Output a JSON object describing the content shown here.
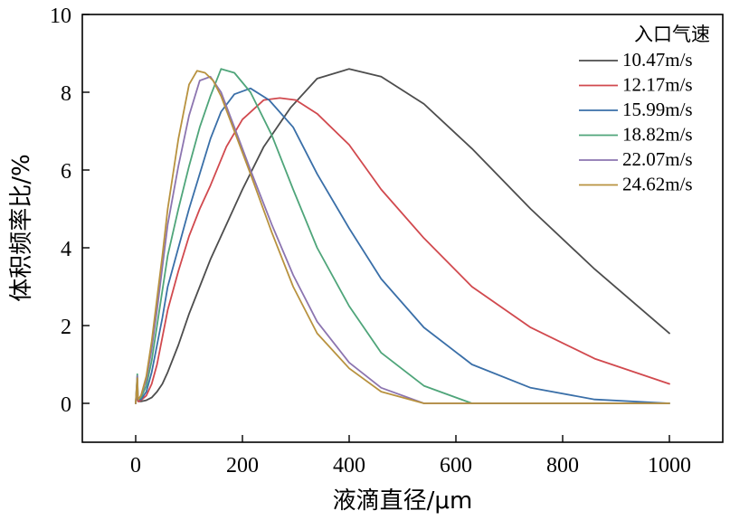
{
  "chart_data": {
    "type": "line",
    "title": "",
    "xlabel": "液滴直径/μm",
    "ylabel": "体积频率比/%",
    "xlim": [
      -100,
      1100
    ],
    "ylim": [
      -1,
      10
    ],
    "xticks": [
      0,
      200,
      400,
      600,
      800,
      1000
    ],
    "yticks": [
      0,
      2,
      4,
      6,
      8,
      10
    ],
    "grid": false,
    "legend": {
      "title": "入口气速",
      "position": "top-right"
    },
    "series": [
      {
        "name": "10.47m/s",
        "color": "#4d4d4d",
        "x": [
          0,
          3,
          4,
          5,
          10,
          20,
          30,
          40,
          50,
          60,
          80,
          100,
          120,
          140,
          170,
          200,
          240,
          290,
          340,
          400,
          460,
          540,
          630,
          740,
          860,
          1000
        ],
        "y": [
          0,
          0.35,
          0.1,
          0.05,
          0.05,
          0.08,
          0.15,
          0.3,
          0.5,
          0.8,
          1.5,
          2.3,
          3.0,
          3.7,
          4.6,
          5.5,
          6.6,
          7.6,
          8.35,
          8.6,
          8.4,
          7.7,
          6.55,
          5.0,
          3.45,
          1.8
        ]
      },
      {
        "name": "12.17m/s",
        "color": "#d1494e",
        "x": [
          0,
          3,
          4,
          5,
          10,
          20,
          30,
          40,
          50,
          60,
          80,
          100,
          120,
          140,
          170,
          200,
          240,
          270,
          300,
          340,
          400,
          460,
          540,
          630,
          740,
          860,
          1000
        ],
        "y": [
          0,
          0.45,
          0.1,
          0.05,
          0.08,
          0.2,
          0.5,
          1.0,
          1.7,
          2.4,
          3.4,
          4.3,
          5.0,
          5.6,
          6.6,
          7.3,
          7.8,
          7.85,
          7.8,
          7.45,
          6.65,
          5.5,
          4.25,
          3.0,
          1.95,
          1.15,
          0.5
        ]
      },
      {
        "name": "15.99m/s",
        "color": "#3a6fa8",
        "x": [
          0,
          3,
          4,
          5,
          10,
          20,
          30,
          40,
          50,
          60,
          80,
          100,
          120,
          140,
          160,
          185,
          215,
          250,
          295,
          340,
          400,
          460,
          540,
          630,
          740,
          860,
          1000
        ],
        "y": [
          0,
          0.55,
          0.15,
          0.1,
          0.1,
          0.3,
          0.8,
          1.5,
          2.2,
          3.0,
          4.0,
          5.0,
          5.9,
          6.8,
          7.5,
          7.95,
          8.1,
          7.8,
          7.1,
          5.9,
          4.5,
          3.2,
          1.95,
          1.0,
          0.4,
          0.1,
          0
        ]
      },
      {
        "name": "18.82m/s",
        "color": "#4fa57a",
        "x": [
          0,
          3,
          4,
          5,
          10,
          20,
          30,
          40,
          50,
          60,
          80,
          100,
          120,
          140,
          160,
          185,
          215,
          255,
          295,
          340,
          400,
          460,
          540,
          630,
          740,
          860,
          1000
        ],
        "y": [
          0,
          0.75,
          0.2,
          0.1,
          0.15,
          0.45,
          1.1,
          2.0,
          2.9,
          3.8,
          5.0,
          6.1,
          7.1,
          7.9,
          8.6,
          8.5,
          8.0,
          6.9,
          5.5,
          4.0,
          2.5,
          1.3,
          0.45,
          0,
          0,
          0,
          0
        ]
      },
      {
        "name": "22.07m/s",
        "color": "#8c75b0",
        "x": [
          0,
          3,
          4,
          5,
          10,
          20,
          30,
          40,
          50,
          60,
          80,
          100,
          120,
          140,
          160,
          185,
          215,
          255,
          295,
          340,
          400,
          460,
          540,
          630,
          740,
          860,
          1000
        ],
        "y": [
          0,
          0.7,
          0.2,
          0.1,
          0.2,
          0.6,
          1.4,
          2.4,
          3.5,
          4.6,
          6.1,
          7.4,
          8.3,
          8.4,
          8.0,
          7.1,
          6.0,
          4.6,
          3.3,
          2.1,
          1.05,
          0.4,
          0,
          0,
          0,
          0,
          0
        ]
      },
      {
        "name": "24.62m/s",
        "color": "#b8923f",
        "x": [
          0,
          3,
          4,
          5,
          10,
          20,
          30,
          40,
          50,
          60,
          80,
          100,
          115,
          130,
          145,
          160,
          185,
          215,
          255,
          295,
          340,
          400,
          460,
          540,
          630,
          740,
          860,
          1000
        ],
        "y": [
          0,
          0.65,
          0.2,
          0.1,
          0.2,
          0.7,
          1.6,
          2.7,
          3.8,
          5.0,
          6.8,
          8.2,
          8.55,
          8.5,
          8.3,
          7.9,
          7.0,
          5.9,
          4.4,
          3.0,
          1.8,
          0.9,
          0.3,
          0,
          0,
          0,
          0,
          0
        ]
      }
    ]
  }
}
